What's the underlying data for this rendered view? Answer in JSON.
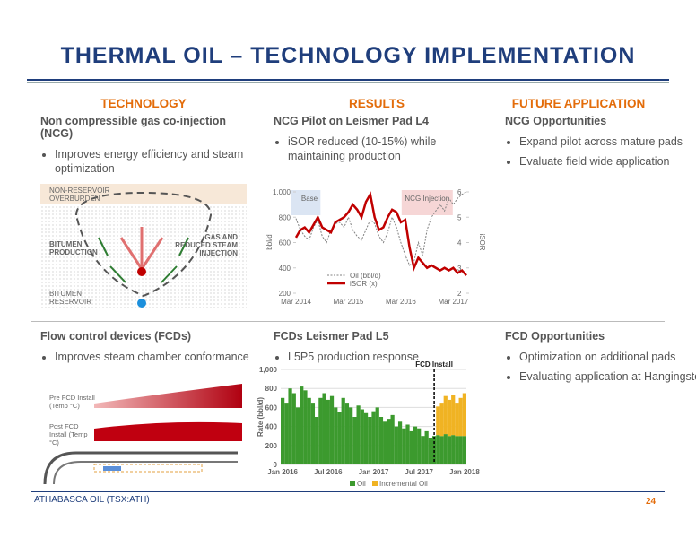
{
  "title": "THERMAL OIL – TECHNOLOGY IMPLEMENTATION",
  "headers": [
    "TECHNOLOGY",
    "RESULTS",
    "FUTURE APPLICATION"
  ],
  "blocks": [
    {
      "heading": "Non compressible gas co-injection (NCG)",
      "bullets": [
        "Improves energy efficiency and steam optimization"
      ]
    },
    {
      "heading": "NCG Pilot on Leismer Pad L4",
      "bullets": [
        "iSOR reduced (10-15%) while maintaining production"
      ]
    },
    {
      "heading": "NCG Opportunities",
      "bullets": [
        "Expand pilot across mature pads",
        "Evaluate field wide application"
      ]
    },
    {
      "heading": "Flow control devices (FCDs)",
      "bullets": [
        "Improves steam chamber conformance"
      ]
    },
    {
      "heading": "FCDs Leismer Pad L5",
      "bullets": [
        "L5P5 production response"
      ]
    },
    {
      "heading": "FCD Opportunities",
      "bullets": [
        "Optimization on additional pads",
        "Evaluating application at Hangingstone"
      ]
    }
  ],
  "diagram_ncg": {
    "overburden": "NON-RESERVOIR OVERBURDEN",
    "production": "BITUMEN PRODUCTION",
    "injection": "GAS AND REDUCED STEAM INJECTION",
    "reservoir": "BITUMEN RESERVOIR"
  },
  "diagram_fcd": {
    "pre": "Pre FCD Install (Temp °C)",
    "post": "Post FCD Install (Temp °C)"
  },
  "chart_data": [
    {
      "type": "line",
      "y_label": "bbl/d",
      "y2_label": "iSOR",
      "annotations": [
        "Base",
        "NCG Injection"
      ],
      "legend": "lower center",
      "categories": [
        "Mar 2014",
        null,
        null,
        null,
        null,
        null,
        null,
        null,
        null,
        null,
        null,
        null,
        "Mar 2015",
        null,
        null,
        null,
        null,
        null,
        null,
        null,
        null,
        null,
        null,
        null,
        "Mar 2016",
        null,
        null,
        null,
        null,
        null,
        null,
        null,
        null,
        null,
        null,
        null,
        "Mar 2017",
        null,
        null,
        null
      ],
      "ylim": [
        200,
        1000
      ],
      "yticks": [
        200,
        400,
        600,
        800,
        {
          "value": 1000,
          "label": "1,000"
        }
      ],
      "y2lim": [
        2,
        6
      ],
      "y2ticks": [
        2,
        3,
        4,
        5,
        6
      ],
      "series": [
        {
          "name": "Oil (bbl/d)",
          "color": "#808080",
          "dashed": true,
          "values": [
            790,
            700,
            650,
            620,
            720,
            780,
            650,
            600,
            700,
            750,
            760,
            720,
            800,
            700,
            650,
            620,
            700,
            780,
            750,
            650,
            600,
            680,
            800,
            720,
            600,
            500,
            420,
            450,
            600,
            500,
            700,
            800,
            850,
            900,
            850,
            950,
            900,
            950,
            980,
            1000
          ]
        },
        {
          "name": "iSOR (x)",
          "color": "#c00000",
          "axis": "y2",
          "values": [
            4.2,
            4.5,
            4.6,
            4.4,
            4.7,
            5.0,
            4.6,
            4.5,
            4.4,
            4.8,
            4.9,
            5.0,
            5.2,
            5.5,
            5.3,
            5.0,
            5.6,
            5.9,
            5.0,
            4.5,
            4.6,
            5.0,
            5.3,
            5.2,
            4.8,
            4.9,
            3.8,
            3.0,
            3.4,
            3.2,
            3.0,
            3.1,
            3.0,
            2.9,
            3.0,
            2.9,
            3.0,
            2.8,
            2.9,
            2.7
          ]
        }
      ]
    },
    {
      "type": "stacked_bar",
      "y_label": "Rate (bbl/d)",
      "annotation": "FCD Install",
      "legend": "lower center",
      "categories": [
        "Jan 2016",
        null,
        null,
        null,
        null,
        null,
        null,
        null,
        null,
        null,
        null,
        null,
        "Jul 2016",
        null,
        null,
        null,
        null,
        null,
        null,
        null,
        null,
        null,
        null,
        null,
        "Jan 2017",
        null,
        null,
        null,
        null,
        null,
        null,
        null,
        null,
        null,
        null,
        null,
        "Jul 2017",
        null,
        null,
        null,
        null,
        null,
        null,
        null,
        null,
        null,
        null,
        null,
        "Jan 2018"
      ],
      "ylim": [
        0,
        1000
      ],
      "yticks": [
        0,
        200,
        400,
        600,
        800,
        {
          "value": 1000,
          "label": "1,000"
        }
      ],
      "series": [
        {
          "name": "Oil",
          "color": "#3c9a2e",
          "values": [
            700,
            650,
            800,
            750,
            600,
            820,
            780,
            700,
            650,
            500,
            700,
            750,
            680,
            720,
            600,
            550,
            700,
            650,
            600,
            500,
            620,
            580,
            540,
            500,
            560,
            600,
            500,
            450,
            480,
            520,
            400,
            450,
            380,
            420,
            350,
            400,
            380,
            300,
            350,
            280,
            300,
            310,
            300,
            320,
            300,
            310,
            300,
            300,
            300
          ]
        },
        {
          "name": "Incremental Oil",
          "color": "#f0b323",
          "values": [
            0,
            0,
            0,
            0,
            0,
            0,
            0,
            0,
            0,
            0,
            0,
            0,
            0,
            0,
            0,
            0,
            0,
            0,
            0,
            0,
            0,
            0,
            0,
            0,
            0,
            0,
            0,
            0,
            0,
            0,
            0,
            0,
            0,
            0,
            0,
            0,
            0,
            0,
            0,
            0,
            0,
            300,
            350,
            400,
            380,
            420,
            350,
            400,
            450
          ]
        }
      ]
    }
  ],
  "footer": {
    "company": "ATHABASCA OIL (TSX:ATH)",
    "page": 24
  }
}
